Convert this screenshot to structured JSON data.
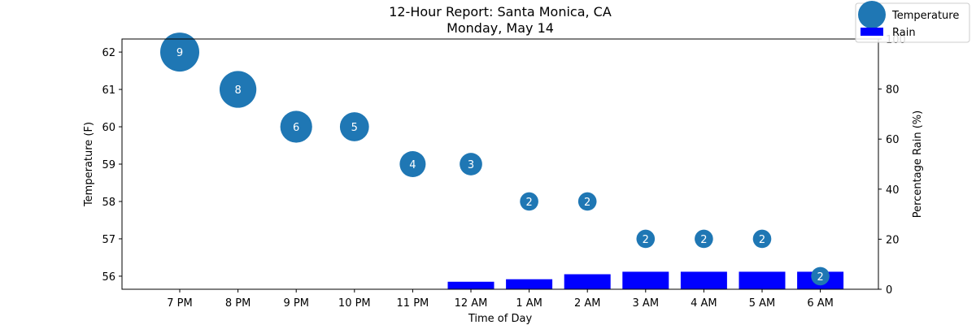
{
  "chart_data": {
    "type": "scatter",
    "title": "12-Hour Report: Santa Monica, CA",
    "subtitle": "Monday, May 14",
    "xlabel": "Time of Day",
    "ylabel": "Temperature (F)",
    "y2label": "Percentage Rain (%)",
    "categories": [
      "7 PM",
      "8 PM",
      "9 PM",
      "10 PM",
      "11 PM",
      "12 AM",
      "1 AM",
      "2 AM",
      "3 AM",
      "4 AM",
      "5 AM",
      "6 AM"
    ],
    "ylim": [
      55.65,
      62.35
    ],
    "yticks": [
      56,
      57,
      58,
      59,
      60,
      61,
      62
    ],
    "y2lim": [
      0,
      100
    ],
    "y2ticks": [
      0,
      20,
      40,
      60,
      80,
      100
    ],
    "grid": false,
    "legend_position": "top-right",
    "series": [
      {
        "name": "Temperature",
        "type": "scatter",
        "color": "#1f77b4",
        "values": [
          62,
          61,
          60,
          60,
          59,
          59,
          58,
          58,
          57,
          57,
          57,
          56
        ],
        "size_labels": [
          9,
          8,
          6,
          5,
          4,
          3,
          2,
          2,
          2,
          2,
          2,
          2
        ]
      },
      {
        "name": "Rain",
        "type": "bar",
        "axis": "right",
        "color": "#0000ff",
        "values": [
          0,
          0,
          0,
          0,
          0,
          3,
          4,
          6,
          7,
          7,
          7,
          7
        ]
      }
    ]
  }
}
